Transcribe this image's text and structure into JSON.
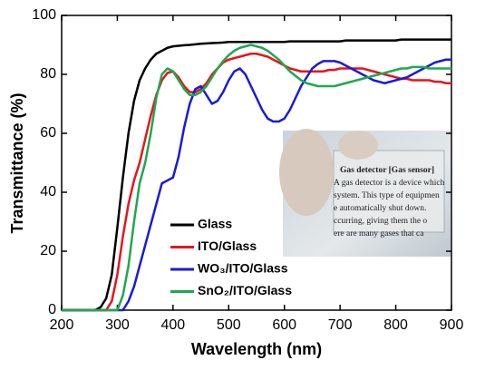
{
  "chart_data": {
    "type": "line",
    "xlabel": "Wavelength (nm)",
    "ylabel": "Transmittance (%)",
    "x": [
      200,
      210,
      220,
      230,
      240,
      250,
      260,
      270,
      280,
      290,
      300,
      310,
      320,
      330,
      340,
      350,
      360,
      370,
      380,
      390,
      400,
      410,
      420,
      430,
      440,
      450,
      460,
      470,
      480,
      490,
      500,
      510,
      520,
      530,
      540,
      550,
      560,
      570,
      580,
      590,
      600,
      610,
      620,
      630,
      640,
      650,
      660,
      670,
      680,
      690,
      700,
      710,
      720,
      730,
      740,
      750,
      760,
      770,
      780,
      790,
      800,
      810,
      820,
      830,
      840,
      850,
      860,
      870,
      880,
      890,
      900
    ],
    "series": [
      {
        "name": "Glass",
        "color": "#000000",
        "values": [
          0,
          0,
          0,
          0,
          0,
          0,
          0,
          1,
          4,
          12,
          28,
          45,
          60,
          71,
          78,
          82,
          85,
          87,
          88,
          89,
          89.5,
          89.7,
          89.9,
          90,
          90.2,
          90.4,
          90.5,
          90.6,
          90.7,
          90.8,
          91,
          91,
          91,
          91,
          91,
          91,
          91,
          91,
          91,
          91,
          91,
          91.2,
          91.2,
          91.2,
          91.2,
          91.2,
          91.2,
          91.2,
          91.2,
          91.2,
          91.2,
          91.5,
          91.5,
          91.5,
          91.5,
          91.5,
          91.5,
          91.5,
          91.5,
          91.5,
          91.5,
          91.8,
          91.8,
          91.8,
          91.8,
          91.8,
          91.8,
          91.8,
          91.8,
          91.8,
          91.8
        ]
      },
      {
        "name": "ITO/Glass",
        "color": "#e8141c",
        "values": [
          0,
          0,
          0,
          0,
          0,
          0,
          0,
          0,
          0,
          3,
          12,
          25,
          36,
          44,
          50,
          58,
          66,
          73,
          78,
          80.5,
          81,
          79,
          76,
          74,
          74,
          75,
          77,
          80,
          82,
          84,
          85,
          85.5,
          86,
          86.5,
          87,
          87,
          86.5,
          86,
          85,
          84,
          83,
          82,
          81.5,
          81,
          81,
          81,
          81,
          81,
          81.5,
          81.5,
          82,
          82,
          82,
          82,
          82,
          81.5,
          81,
          80.5,
          80,
          79.5,
          79,
          78.5,
          78.5,
          78,
          78,
          78,
          78,
          77.5,
          77.5,
          77,
          77
        ]
      },
      {
        "name": "WO₃/ITO/Glass",
        "color": "#1a1adb",
        "values": [
          0,
          0,
          0,
          0,
          0,
          0,
          0,
          0,
          0,
          0,
          0,
          0,
          3,
          8,
          15,
          22,
          29,
          36,
          43,
          44,
          45,
          52,
          62,
          70,
          75,
          76,
          73,
          70,
          71,
          74,
          78,
          81,
          82,
          80,
          76,
          72,
          68,
          65,
          64,
          64,
          65,
          68,
          72,
          76,
          79,
          82,
          83.5,
          84.5,
          84.5,
          84.5,
          84,
          83,
          82,
          81,
          80,
          79,
          78,
          77.5,
          77,
          77.5,
          78,
          78.5,
          79,
          80,
          81,
          82,
          83,
          84,
          84.5,
          85,
          85
        ]
      },
      {
        "name": "SnO₂/ITO/Glass",
        "color": "#1fa84f",
        "values": [
          0,
          0,
          0,
          0,
          0,
          0,
          0,
          0,
          0,
          0,
          0,
          5,
          15,
          30,
          43,
          50,
          60,
          72,
          80,
          82,
          81,
          78,
          75,
          73,
          73,
          74,
          76,
          79,
          82,
          84.5,
          86.5,
          88,
          89,
          89.5,
          90,
          89.5,
          89,
          88,
          86.5,
          85,
          83,
          81,
          79.5,
          78,
          77,
          76.5,
          76,
          76,
          76,
          76,
          76.5,
          77,
          77.5,
          78,
          78.5,
          79,
          79.5,
          80,
          80.5,
          81,
          81.5,
          82,
          82,
          82.5,
          82.5,
          82.5,
          82,
          82,
          82,
          82,
          82
        ]
      }
    ],
    "xlim": [
      200,
      900
    ],
    "xticks": [
      200,
      300,
      400,
      500,
      600,
      700,
      800,
      900
    ],
    "ylim": [
      0,
      100
    ],
    "yticks": [
      0,
      20,
      40,
      60,
      80,
      100
    ],
    "grid": false,
    "legend": "lower center",
    "inset": {
      "lines": [
        "Gas detector [Gas sensor]",
        "A gas detector is a device which",
        "system. This type of equipmen",
        "e automatically shut down.",
        "ccurring, giving them the o",
        "ere are many gases that ca"
      ]
    }
  }
}
